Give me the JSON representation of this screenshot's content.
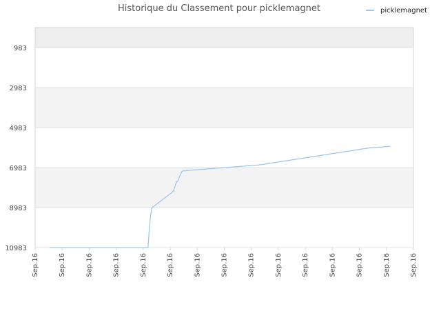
{
  "chart_data": {
    "type": "line",
    "title": "Historique du Classement pour picklemagnet",
    "xlabel": "",
    "ylabel": "",
    "legend_position": "top-right",
    "grid": true,
    "y_inverted": true,
    "ylim": [
      10983,
      -17
    ],
    "y_ticks": [
      983,
      2983,
      4983,
      6983,
      8983,
      10983
    ],
    "x_tick_labels": [
      "Sep.16",
      "Sep.16",
      "Sep.16",
      "Sep.16",
      "Sep.16",
      "Sep.16",
      "Sep.16",
      "Sep.16",
      "Sep.16",
      "Sep.16",
      "Sep.16",
      "Sep.16",
      "Sep.16",
      "Sep.16",
      "Sep.16"
    ],
    "series": [
      {
        "name": "picklemagnet",
        "color": "#9ec7f0",
        "values": [
          10983,
          10983,
          10983,
          10983,
          10983,
          10983,
          10983,
          10983,
          10983,
          10983,
          10983,
          10983,
          10983,
          10983,
          10983,
          10983,
          10983,
          10983,
          10983,
          10983,
          10983,
          10983,
          10983,
          10983,
          10983,
          10983,
          10983,
          10983,
          10983,
          10983,
          10983,
          10983,
          10983,
          10983,
          10983,
          10983,
          10983,
          10983,
          10983,
          10983,
          10983,
          10983,
          10983,
          10983,
          10983,
          10983,
          10983,
          10983,
          10983,
          10983,
          10983,
          10983,
          10983,
          10983,
          10983,
          10983,
          10983,
          10983,
          10983,
          10983,
          10983,
          10983,
          10983,
          10983,
          10983,
          10983,
          10983,
          10983,
          10983,
          10983,
          10983,
          10983,
          10983,
          10983,
          10983,
          10983,
          10983,
          10100,
          9400,
          9000,
          8950,
          8900,
          8850,
          8800,
          8750,
          8700,
          8650,
          8600,
          8550,
          8500,
          8450,
          8400,
          8350,
          8300,
          8250,
          8200,
          8100,
          7900,
          7700,
          7650,
          7500,
          7350,
          7200,
          7150,
          7150,
          7140,
          7130,
          7125,
          7120,
          7115,
          7110,
          7105,
          7100,
          7095,
          7090,
          7085,
          7080,
          7075,
          7070,
          7065,
          7060,
          7055,
          7050,
          7045,
          7040,
          7035,
          7030,
          7025,
          7020,
          7015,
          7010,
          7005,
          7000,
          6995,
          6990,
          6985,
          6980,
          6975,
          6970,
          6965,
          6960,
          6955,
          6950,
          6945,
          6940,
          6935,
          6930,
          6925,
          6920,
          6915,
          6910,
          6905,
          6900,
          6895,
          6890,
          6885,
          6880,
          6875,
          6870,
          6865,
          6860,
          6855,
          6850,
          6840,
          6830,
          6820,
          6810,
          6800,
          6790,
          6780,
          6770,
          6760,
          6750,
          6740,
          6730,
          6720,
          6710,
          6700,
          6690,
          6680,
          6670,
          6660,
          6650,
          6640,
          6630,
          6620,
          6610,
          6600,
          6590,
          6580,
          6570,
          6560,
          6550,
          6540,
          6530,
          6520,
          6510,
          6500,
          6490,
          6480,
          6470,
          6460,
          6450,
          6440,
          6430,
          6420,
          6410,
          6400,
          6390,
          6380,
          6370,
          6360,
          6350,
          6340,
          6330,
          6320,
          6310,
          6300,
          6290,
          6280,
          6270,
          6260,
          6250,
          6240,
          6230,
          6220,
          6210,
          6200,
          6190,
          6180,
          6170,
          6160,
          6150,
          6140,
          6130,
          6120,
          6110,
          6100,
          6090,
          6080,
          6070,
          6060,
          6050,
          6040,
          6030,
          6020,
          6010,
          6000,
          5995,
          5990,
          5985,
          5980,
          5975,
          5970,
          5965,
          5960,
          5955,
          5950,
          5945,
          5940,
          5935,
          5930,
          5925,
          5920
        ]
      }
    ]
  },
  "colors": {
    "band_light": "#ffffff",
    "band_dark": "#f3f3f3",
    "band_top": "#eeeeee",
    "grid": "#e0e0e0",
    "axis": "#d6d6d6"
  }
}
